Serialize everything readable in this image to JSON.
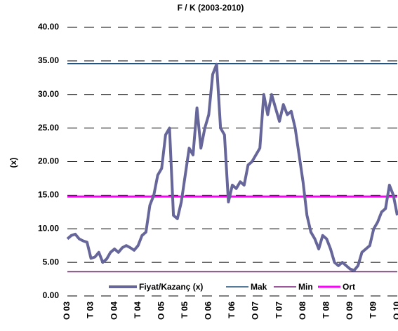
{
  "chart_data": {
    "type": "line",
    "title": "F / K (2003-2010)",
    "y_label": "(x)",
    "categories": [
      "O 03",
      null,
      null,
      null,
      null,
      null,
      "T 03",
      null,
      null,
      null,
      null,
      null,
      "O 04",
      null,
      null,
      null,
      null,
      null,
      "T 04",
      null,
      null,
      null,
      null,
      null,
      "O 05",
      null,
      null,
      null,
      null,
      null,
      "T 05",
      null,
      null,
      null,
      null,
      null,
      "O 06",
      null,
      null,
      null,
      null,
      null,
      "T 06",
      null,
      null,
      null,
      null,
      null,
      "O 07",
      null,
      null,
      null,
      null,
      null,
      "T 07",
      null,
      null,
      null,
      null,
      null,
      "O 08",
      null,
      null,
      null,
      null,
      null,
      "T 08",
      null,
      null,
      null,
      null,
      null,
      "O 09",
      null,
      null,
      null,
      null,
      null,
      "T 09",
      null,
      null,
      null,
      null,
      null,
      "O 10"
    ],
    "series": [
      {
        "name": "Fiyat/Kazanç (x)",
        "color": "#66669a",
        "values": [
          8.5,
          9,
          9.2,
          8.5,
          8.2,
          8,
          5.6,
          5.8,
          6.5,
          5,
          5.5,
          6.5,
          7,
          6.5,
          7.2,
          7.5,
          7.2,
          6.8,
          7.5,
          9,
          9.5,
          13.5,
          15,
          18,
          19,
          24,
          25,
          12,
          11.5,
          14,
          18,
          22,
          21,
          28,
          22,
          25,
          27,
          33,
          34.5,
          25,
          24,
          14,
          16.5,
          16,
          17,
          16.5,
          19.5,
          20,
          21,
          22,
          30,
          27,
          30,
          28,
          26,
          28.5,
          27,
          27.5,
          25,
          21,
          17,
          12,
          9.5,
          8.5,
          7,
          9,
          8.5,
          7,
          5,
          4.5,
          5,
          4.5,
          4,
          3.8,
          4.5,
          6.5,
          7,
          7.5,
          10,
          11,
          12.5,
          13,
          16.5,
          15,
          12
        ]
      }
    ],
    "reference_lines": [
      {
        "name": "Mak",
        "color": "#1f4e79",
        "value": 34.6
      },
      {
        "name": "Min",
        "color": "#7b1f7b",
        "value": 3.6
      },
      {
        "name": "Ort",
        "color": "#ff00ff",
        "value": 14.8
      }
    ],
    "ylim": [
      0,
      40
    ],
    "yticks": [
      {
        "value": 0,
        "label": "0.00"
      },
      {
        "value": 5,
        "label": "5.00"
      },
      {
        "value": 10,
        "label": "10.00"
      },
      {
        "value": 15,
        "label": "15.00"
      },
      {
        "value": 20,
        "label": "20.00"
      },
      {
        "value": 25,
        "label": "25.00"
      },
      {
        "value": 30,
        "label": "30.00"
      },
      {
        "value": 35,
        "label": "35.00"
      },
      {
        "value": 40,
        "label": "40.00"
      }
    ],
    "grid": true
  }
}
